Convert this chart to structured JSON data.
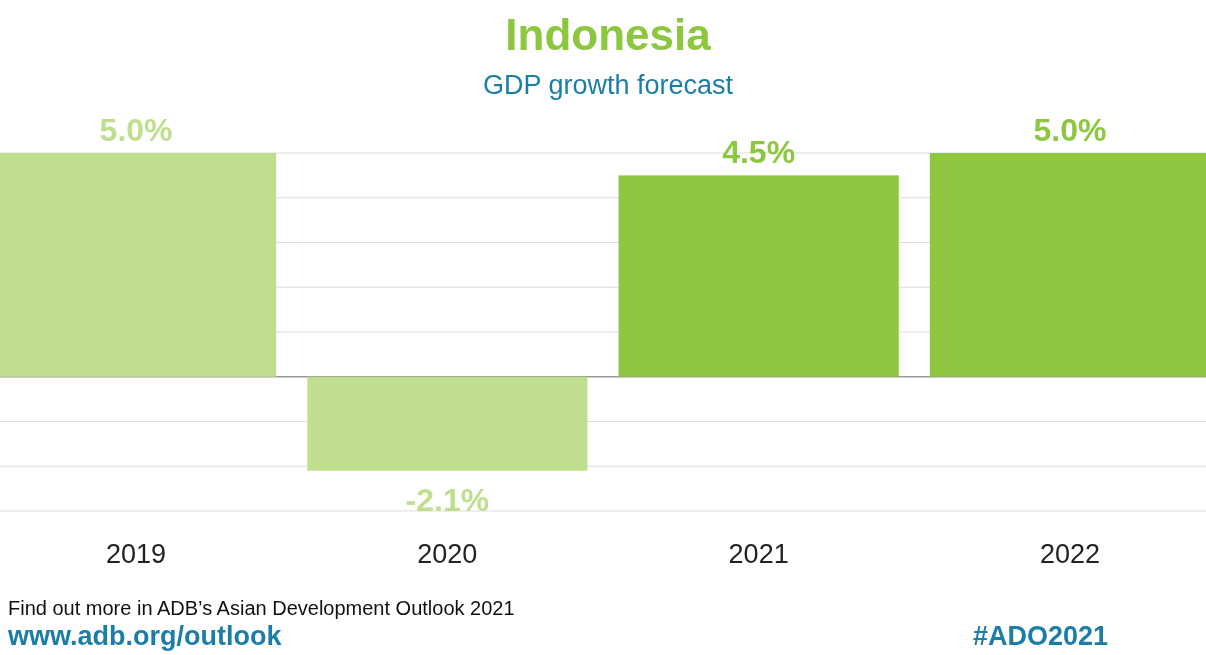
{
  "chart_data": {
    "type": "bar",
    "title": "Indonesia",
    "subtitle": "GDP growth forecast",
    "categories": [
      "2019",
      "2020",
      "2021",
      "2022"
    ],
    "values": [
      5.0,
      -2.1,
      4.5,
      5.0
    ],
    "colors": [
      "#bfdf8f",
      "#bfdf8f",
      "#8dc63f",
      "#8dc63f"
    ],
    "value_labels": [
      "5.0%",
      "-2.1%",
      "4.5%",
      "5.0%"
    ],
    "ylim": [
      -3,
      5
    ],
    "yticks": [
      {
        "value": -3,
        "label": null
      },
      {
        "value": -2,
        "label": null
      },
      {
        "value": -1,
        "label": null
      },
      {
        "value": 0,
        "label": null
      },
      {
        "value": 1,
        "label": null
      },
      {
        "value": 2,
        "label": null
      },
      {
        "value": 3,
        "label": null
      },
      {
        "value": 4,
        "label": null
      },
      {
        "value": 5,
        "label": null
      }
    ],
    "grid": "y",
    "annotations": [
      "Find out more in ADB’s Asian Development Outlook 2021",
      "www.adb.org/outlook",
      "#ADO2021"
    ]
  }
}
